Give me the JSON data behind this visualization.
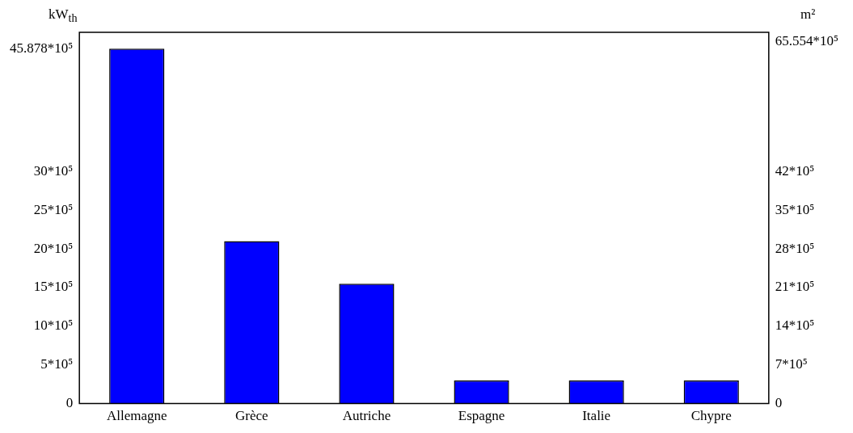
{
  "chart_data": {
    "type": "bar",
    "categories": [
      "Allemagne",
      "Grèce",
      "Autriche",
      "Espagne",
      "Italie",
      "Chypre"
    ],
    "values": [
      4587800,
      2100000,
      1550000,
      300000,
      300000,
      300000
    ],
    "color": "#0000ff",
    "ylabel": "kW$_{th}$",
    "y2label": "m²",
    "ylim": [
      0,
      4800000
    ],
    "yticks": [
      {
        "value": 0,
        "label": "0"
      },
      {
        "value": 500000,
        "label": "5*10⁵"
      },
      {
        "value": 1000000,
        "label": "10*10⁵"
      },
      {
        "value": 1500000,
        "label": "15*10⁵"
      },
      {
        "value": 2000000,
        "label": "20*10⁵"
      },
      {
        "value": 2500000,
        "label": "25*10⁵"
      },
      {
        "value": 3000000,
        "label": "30*10⁵"
      },
      {
        "value": 4587800,
        "label": "45.878*10⁵"
      }
    ],
    "y2lim": [
      0,
      6720000
    ],
    "y2ticks": [
      {
        "value": 0,
        "label": "0"
      },
      {
        "value": 700000,
        "label": "7*10⁵"
      },
      {
        "value": 1400000,
        "label": "14*10⁵"
      },
      {
        "value": 2100000,
        "label": "21*10⁵"
      },
      {
        "value": 2800000,
        "label": "28*10⁵"
      },
      {
        "value": 3500000,
        "label": "35*10⁵"
      },
      {
        "value": 4200000,
        "label": "42*10⁵"
      },
      {
        "value": 6555400,
        "label": "65.554*10⁵"
      }
    ]
  }
}
